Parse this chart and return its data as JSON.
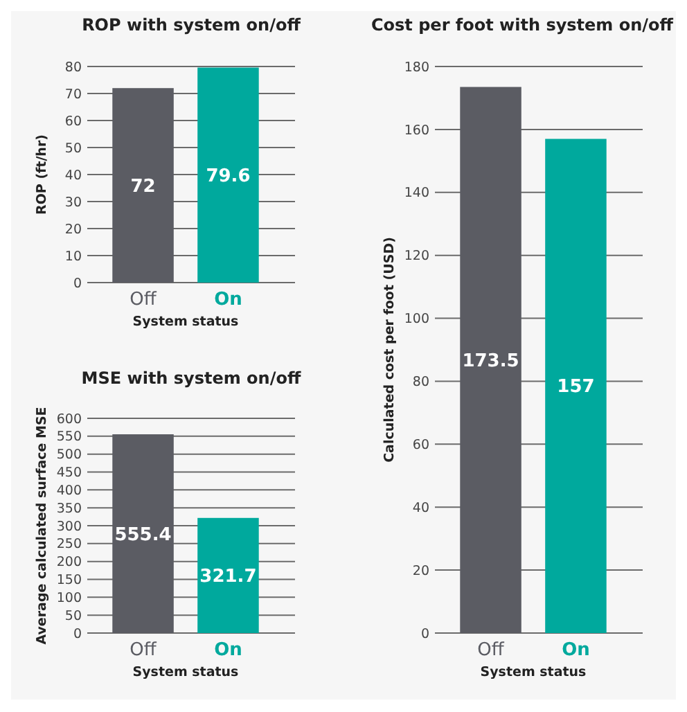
{
  "chart_data": [
    {
      "type": "bar",
      "title": "ROP with system on/off",
      "xlabel": "System status",
      "ylabel": "ROP (ft/hr)",
      "categories": [
        "Off",
        "On"
      ],
      "values": [
        72,
        79.6
      ],
      "colors": [
        "#5b5c63",
        "#00a99d"
      ],
      "ylim": [
        0,
        80
      ],
      "yticks": [
        0,
        10,
        20,
        30,
        40,
        50,
        60,
        70,
        80
      ],
      "grid": "y",
      "data_labels": true
    },
    {
      "type": "bar",
      "title": "MSE with system on/off",
      "xlabel": "System status",
      "ylabel": "Average calculated surface MSE",
      "categories": [
        "Off",
        "On"
      ],
      "values": [
        555.4,
        321.7
      ],
      "colors": [
        "#5b5c63",
        "#00a99d"
      ],
      "ylim": [
        0,
        600
      ],
      "yticks": [
        0,
        50,
        100,
        150,
        200,
        250,
        300,
        350,
        400,
        450,
        500,
        550,
        600
      ],
      "grid": "y",
      "data_labels": true
    },
    {
      "type": "bar",
      "title": "Cost per foot with system on/off",
      "xlabel": "System status",
      "ylabel": "Calculated cost per foot (USD)",
      "categories": [
        "Off",
        "On"
      ],
      "values": [
        173.5,
        157
      ],
      "colors": [
        "#5b5c63",
        "#00a99d"
      ],
      "ylim": [
        0,
        180
      ],
      "yticks": [
        0,
        20,
        40,
        60,
        80,
        100,
        120,
        140,
        160,
        180
      ],
      "grid": "y",
      "data_labels": true
    }
  ]
}
